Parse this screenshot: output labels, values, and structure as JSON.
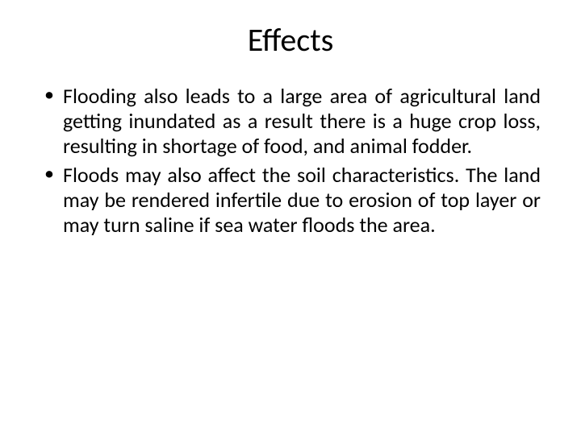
{
  "slide": {
    "title": "Effects",
    "bullets": [
      "Flooding also leads to a large area of agricultural land getting inundated as a result there is a huge crop loss, resulting in shortage of food, and animal fodder.",
      "Floods may also affect the soil characteristics. The land may be rendered infertile due to erosion of top layer or may turn saline if sea water floods the area."
    ]
  },
  "styling": {
    "background_color": "#ffffff",
    "text_color": "#000000",
    "title_fontsize": 40,
    "body_fontsize": 26,
    "font_family": "Calibri"
  }
}
